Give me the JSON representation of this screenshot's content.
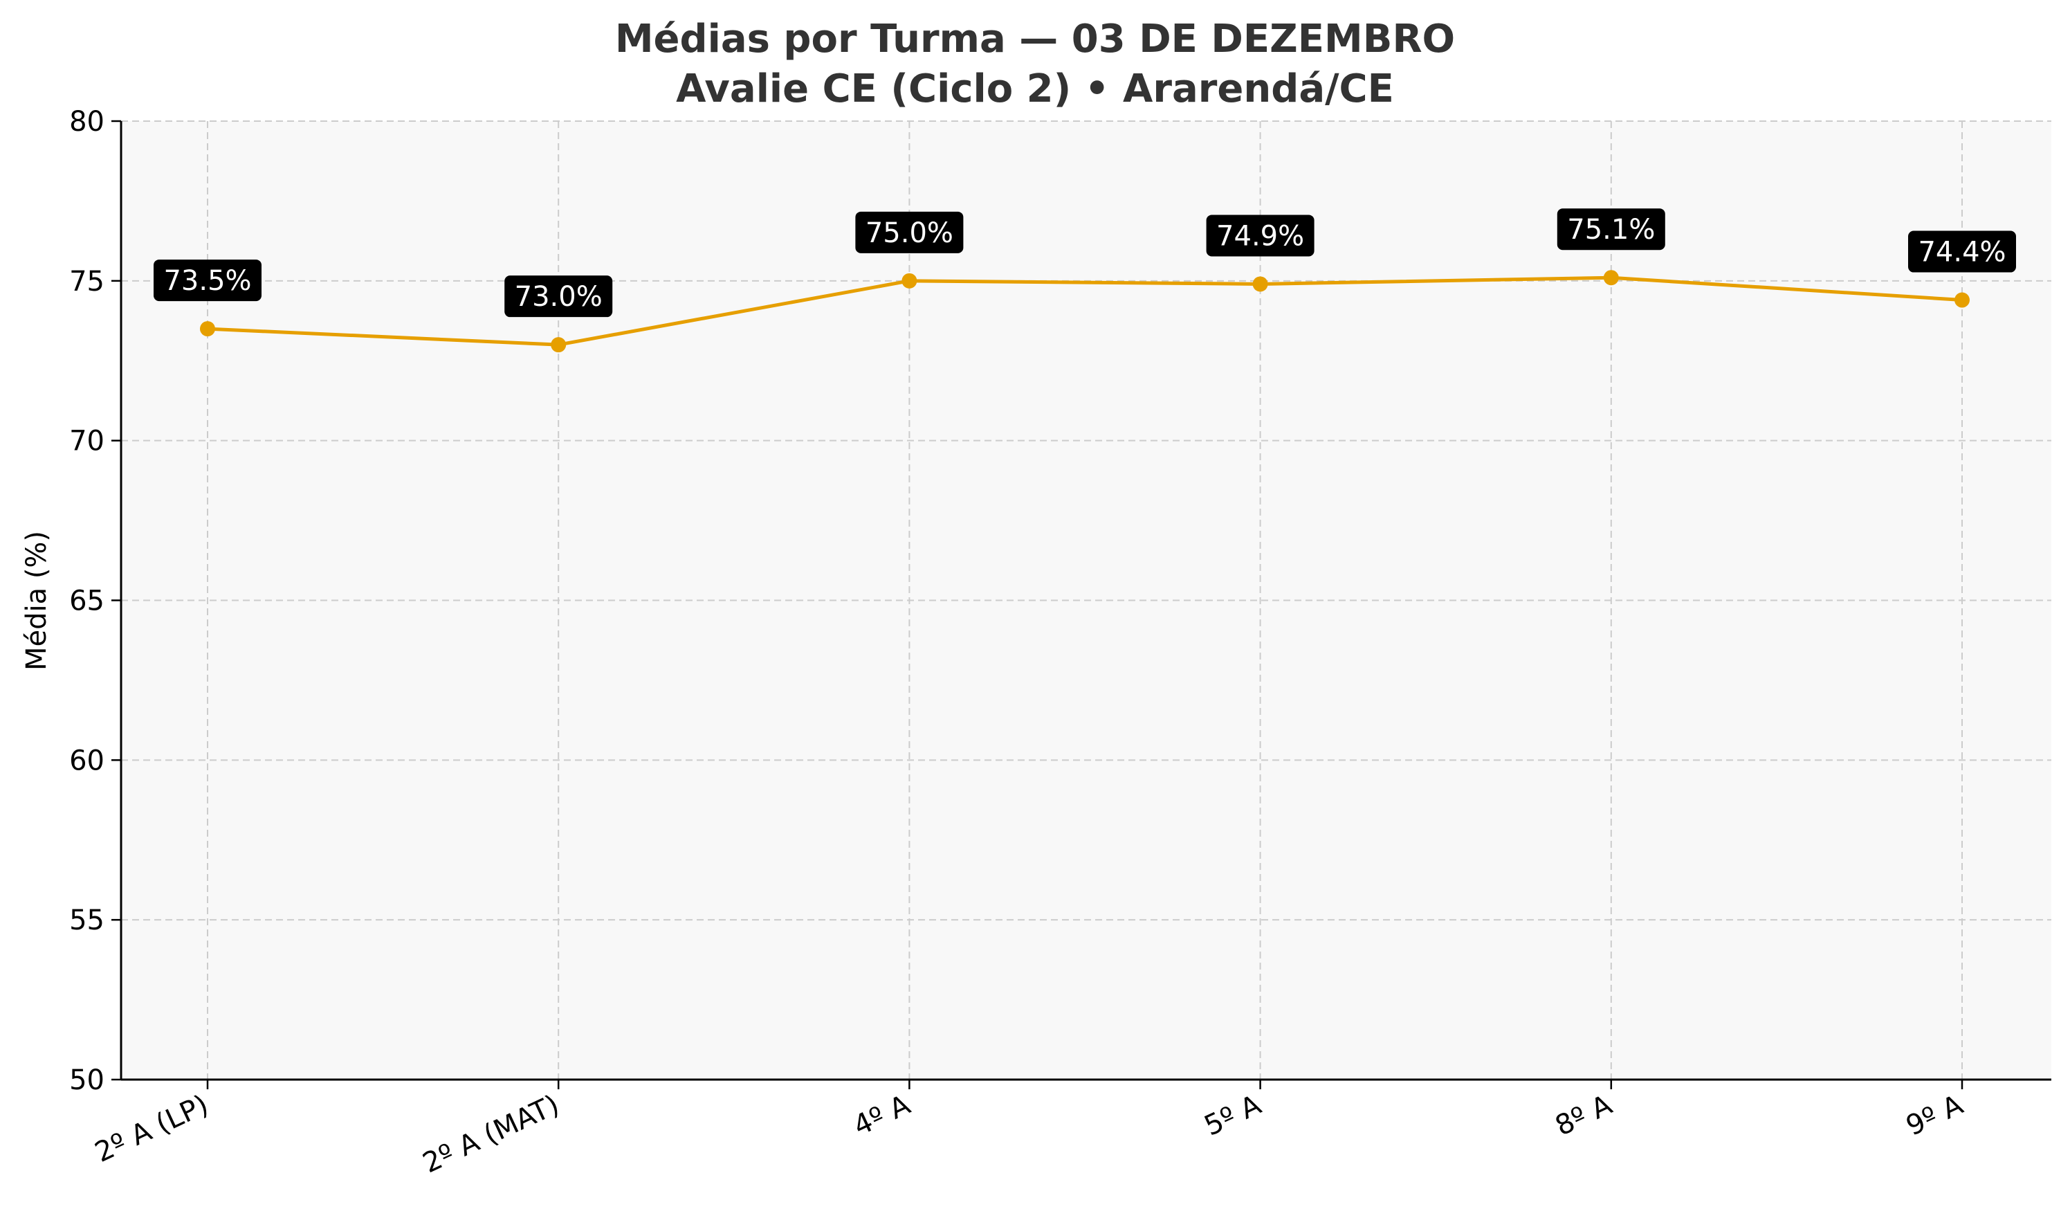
{
  "chart_data": {
    "type": "line",
    "title_line1": "Médias por Turma — 03 DE DEZEMBRO",
    "title_line2": "Avalie CE (Ciclo 2) • Ararendá/CE",
    "xlabel": "",
    "ylabel": "Média (%)",
    "categories": [
      "2º A (LP)",
      "2º A (MAT)",
      "4º A",
      "5º A",
      "8º A",
      "9º A"
    ],
    "values": [
      73.5,
      73.0,
      75.0,
      74.9,
      75.1,
      74.4
    ],
    "data_labels": [
      "73.5%",
      "73.0%",
      "75.0%",
      "74.9%",
      "75.1%",
      "74.4%"
    ],
    "ylim": [
      50,
      80
    ],
    "yticks": [
      50,
      55,
      60,
      65,
      70,
      75,
      80
    ],
    "grid": true,
    "line_color": "#e69f00",
    "label_box_color": "#000000",
    "plot_background": "#f8f8f8"
  }
}
